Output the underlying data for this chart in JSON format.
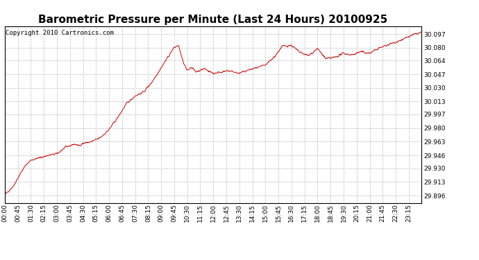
{
  "title": "Barometric Pressure per Minute (Last 24 Hours) 20100925",
  "copyright": "Copyright 2010 Cartronics.com",
  "line_color": "#cc0000",
  "background_color": "#ffffff",
  "grid_color": "#bbbbbb",
  "yticks": [
    29.896,
    29.913,
    29.93,
    29.946,
    29.963,
    29.98,
    29.997,
    30.013,
    30.03,
    30.047,
    30.064,
    30.08,
    30.097
  ],
  "ylim": [
    29.887,
    30.107
  ],
  "xtick_labels": [
    "00:00",
    "00:45",
    "01:30",
    "02:15",
    "03:00",
    "03:45",
    "04:30",
    "05:15",
    "06:00",
    "06:45",
    "07:30",
    "08:15",
    "09:00",
    "09:45",
    "10:30",
    "11:15",
    "12:00",
    "12:45",
    "13:30",
    "14:15",
    "15:00",
    "15:45",
    "16:30",
    "17:15",
    "18:00",
    "18:45",
    "19:30",
    "20:15",
    "21:00",
    "21:45",
    "22:30",
    "23:15"
  ],
  "title_fontsize": 11,
  "tick_fontsize": 6.5,
  "copyright_fontsize": 6.5,
  "waypoints_t": [
    0,
    0.5,
    0.75,
    1.0,
    1.25,
    1.5,
    2.0,
    2.5,
    3.0,
    3.25,
    3.5,
    3.75,
    4.0,
    4.25,
    4.5,
    5.0,
    5.5,
    6.0,
    6.5,
    7.0,
    7.5,
    8.0,
    8.5,
    9.0,
    9.5,
    9.75,
    10.0,
    10.3,
    10.5,
    10.75,
    11.0,
    11.25,
    11.5,
    12.0,
    12.5,
    13.0,
    13.5,
    14.0,
    14.5,
    15.0,
    15.25,
    15.5,
    16.0,
    16.5,
    17.0,
    17.5,
    18.0,
    18.5,
    19.0,
    19.5,
    20.0,
    20.5,
    21.0,
    21.5,
    22.0,
    22.5,
    23.0,
    23.5,
    24.0
  ],
  "waypoints_p": [
    29.897,
    29.908,
    29.918,
    29.927,
    29.935,
    29.94,
    29.943,
    29.946,
    29.948,
    29.952,
    29.956,
    29.958,
    29.96,
    29.958,
    29.961,
    29.963,
    29.968,
    29.978,
    29.993,
    30.01,
    30.02,
    30.025,
    30.038,
    30.055,
    30.072,
    30.08,
    30.083,
    30.06,
    30.052,
    30.056,
    30.05,
    30.052,
    30.054,
    30.048,
    30.05,
    30.051,
    30.048,
    30.052,
    30.055,
    30.058,
    30.063,
    30.068,
    30.082,
    30.083,
    30.074,
    30.07,
    30.079,
    30.066,
    30.068,
    30.073,
    30.071,
    30.075,
    30.073,
    30.079,
    30.083,
    30.087,
    30.091,
    30.096,
    30.099
  ]
}
